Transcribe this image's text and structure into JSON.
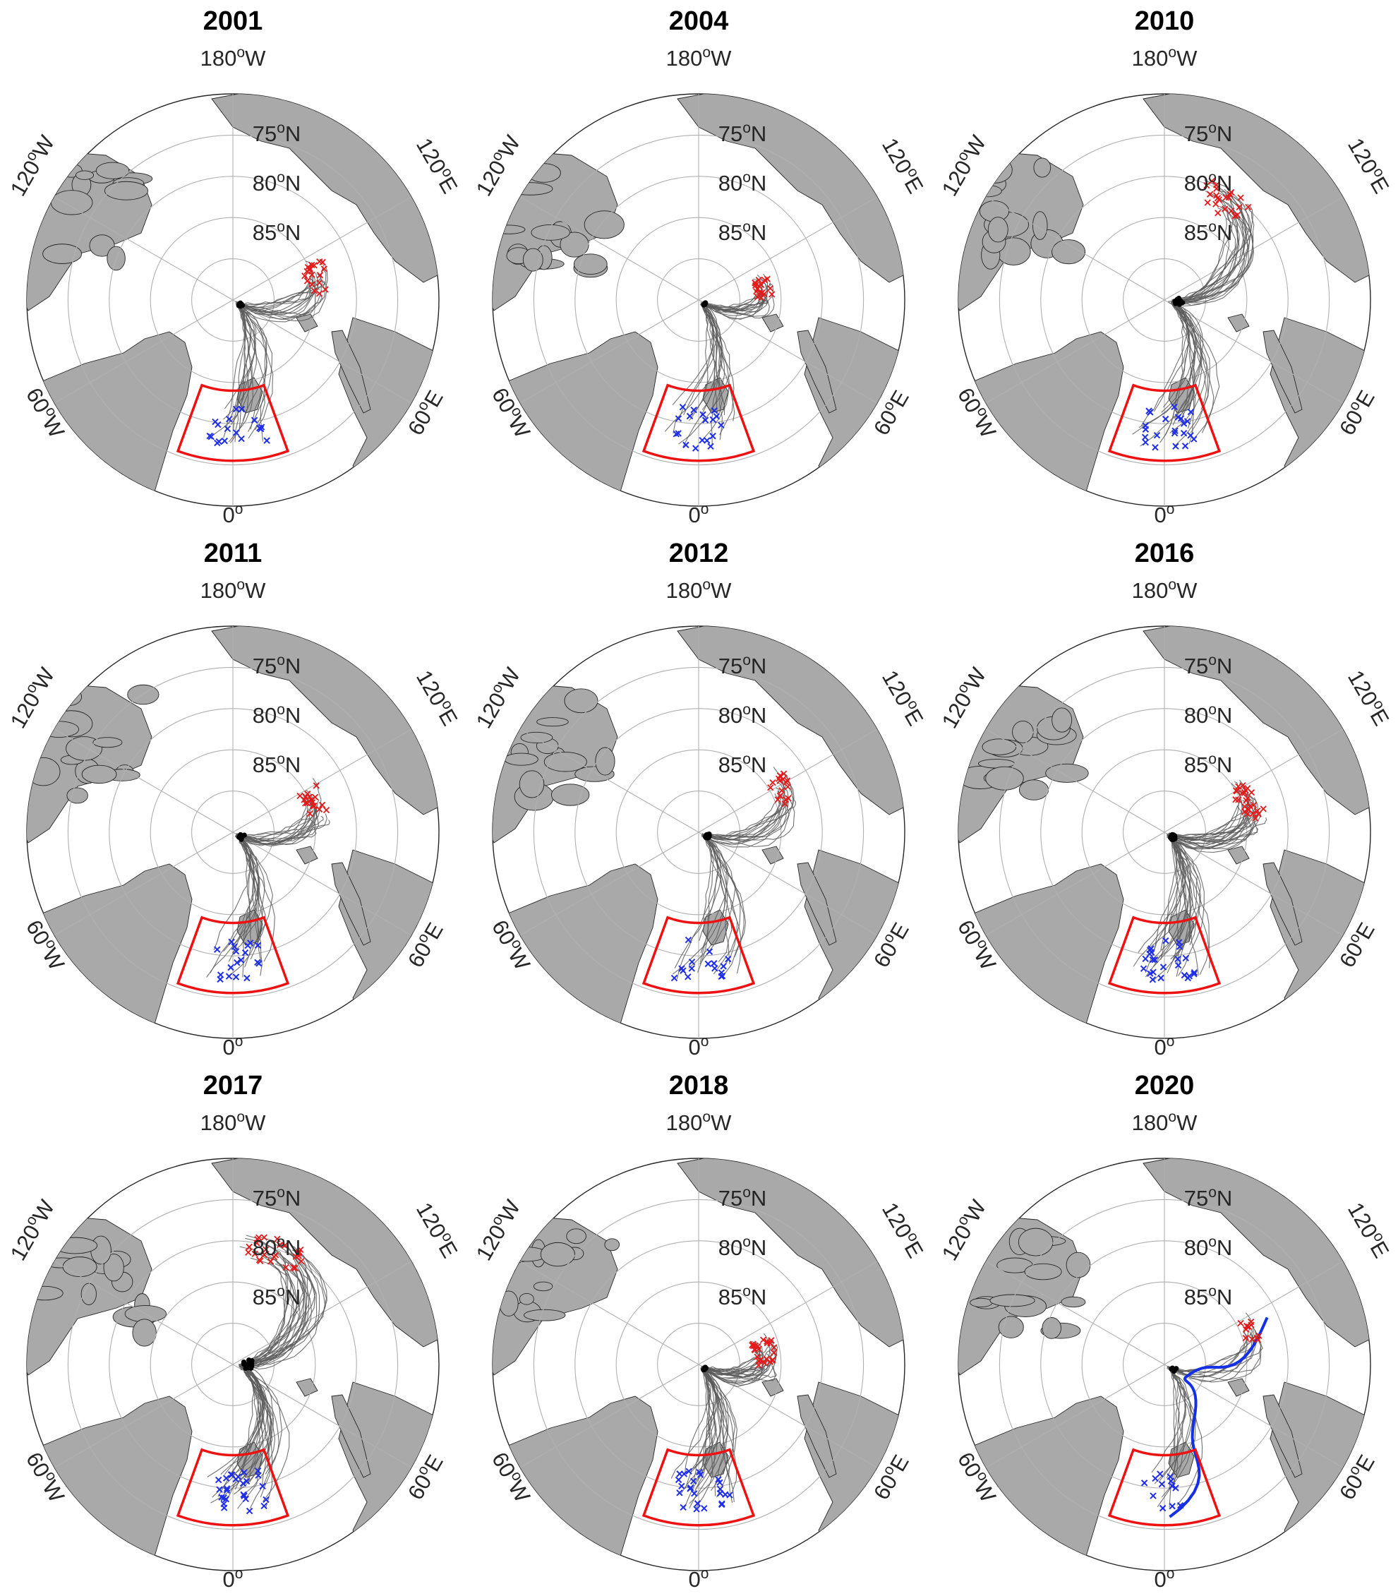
{
  "figure": {
    "colors": {
      "land": "#a9a9a9",
      "track": "#5a5a5a",
      "box": "#ee1111",
      "start_marker": "#1f2ee8",
      "end_marker": "#e41a1a",
      "point_marker": "#000000",
      "highlight_track": "#1430e6",
      "grid": "#b0b0b0"
    },
    "grid_labels": {
      "lon_top": "180",
      "lon_top_suffix": "W",
      "lon_ul": "120",
      "lon_ul_suffix": "W",
      "lon_ur": "120",
      "lon_ur_suffix": "E",
      "lon_ll": "60",
      "lon_ll_suffix": "W",
      "lon_lr": "60",
      "lon_lr_suffix": "E",
      "lon_bottom": "0",
      "lon_bottom_suffix": "",
      "lat_75": "75",
      "lat_80": "80",
      "lat_85": "85",
      "lat_suffix": "N",
      "degree": "o"
    },
    "panels": [
      {
        "year": "2001",
        "tracks": 18,
        "spread": 0.55,
        "highlight": false
      },
      {
        "year": "2004",
        "tracks": 18,
        "spread": 0.45,
        "highlight": false
      },
      {
        "year": "2010",
        "tracks": 22,
        "spread": 0.65,
        "highlight": false
      },
      {
        "year": "2011",
        "tracks": 18,
        "spread": 0.5,
        "highlight": false
      },
      {
        "year": "2012",
        "tracks": 16,
        "spread": 0.5,
        "highlight": false
      },
      {
        "year": "2016",
        "tracks": 24,
        "spread": 0.6,
        "highlight": false
      },
      {
        "year": "2017",
        "tracks": 26,
        "spread": 0.7,
        "highlight": false
      },
      {
        "year": "2018",
        "tracks": 24,
        "spread": 0.55,
        "highlight": false
      },
      {
        "year": "2020",
        "tracks": 12,
        "spread": 0.45,
        "highlight": true
      }
    ]
  }
}
